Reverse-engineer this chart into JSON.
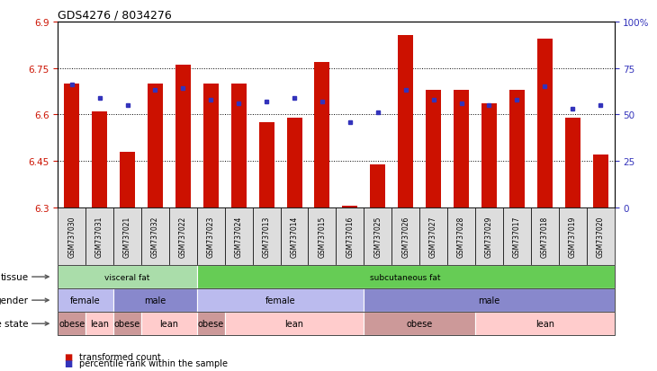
{
  "title": "GDS4276 / 8034276",
  "samples": [
    "GSM737030",
    "GSM737031",
    "GSM737021",
    "GSM737032",
    "GSM737022",
    "GSM737023",
    "GSM737024",
    "GSM737013",
    "GSM737014",
    "GSM737015",
    "GSM737016",
    "GSM737025",
    "GSM737026",
    "GSM737027",
    "GSM737028",
    "GSM737029",
    "GSM737017",
    "GSM737018",
    "GSM737019",
    "GSM737020"
  ],
  "bar_values": [
    6.7,
    6.61,
    6.48,
    6.7,
    6.76,
    6.7,
    6.7,
    6.575,
    6.59,
    6.77,
    6.305,
    6.44,
    6.855,
    6.68,
    6.68,
    6.635,
    6.68,
    6.845,
    6.59,
    6.47
  ],
  "percentile_pct": [
    66,
    59,
    55,
    63,
    64,
    58,
    56,
    57,
    59,
    57,
    46,
    51,
    63,
    58,
    56,
    55,
    58,
    65,
    53,
    55
  ],
  "ymin": 6.3,
  "ymax": 6.9,
  "bar_color": "#CC1100",
  "dot_color": "#3333BB",
  "tissue_groups": [
    {
      "label": "visceral fat",
      "start": 0,
      "end": 5,
      "color": "#AADDAA"
    },
    {
      "label": "subcutaneous fat",
      "start": 5,
      "end": 20,
      "color": "#66CC55"
    }
  ],
  "gender_groups": [
    {
      "label": "female",
      "start": 0,
      "end": 2,
      "color": "#BBBBEE"
    },
    {
      "label": "male",
      "start": 2,
      "end": 5,
      "color": "#8888CC"
    },
    {
      "label": "female",
      "start": 5,
      "end": 11,
      "color": "#BBBBEE"
    },
    {
      "label": "male",
      "start": 11,
      "end": 20,
      "color": "#8888CC"
    }
  ],
  "disease_groups": [
    {
      "label": "obese",
      "start": 0,
      "end": 1,
      "color": "#CC9999"
    },
    {
      "label": "lean",
      "start": 1,
      "end": 2,
      "color": "#FFCCCC"
    },
    {
      "label": "obese",
      "start": 2,
      "end": 3,
      "color": "#CC9999"
    },
    {
      "label": "lean",
      "start": 3,
      "end": 5,
      "color": "#FFCCCC"
    },
    {
      "label": "obese",
      "start": 5,
      "end": 6,
      "color": "#CC9999"
    },
    {
      "label": "lean",
      "start": 6,
      "end": 11,
      "color": "#FFCCCC"
    },
    {
      "label": "obese",
      "start": 11,
      "end": 15,
      "color": "#CC9999"
    },
    {
      "label": "lean",
      "start": 15,
      "end": 20,
      "color": "#FFCCCC"
    }
  ],
  "right_yticks": [
    0,
    25,
    50,
    75,
    100
  ],
  "right_yticklabels": [
    "0",
    "25",
    "50",
    "75",
    "100%"
  ],
  "left_yticks": [
    6.3,
    6.45,
    6.6,
    6.75,
    6.9
  ],
  "left_yticklabels": [
    "6.3",
    "6.45",
    "6.6",
    "6.75",
    "6.9"
  ],
  "legend_bar_label": "transformed count",
  "legend_dot_label": "percentile rank within the sample"
}
